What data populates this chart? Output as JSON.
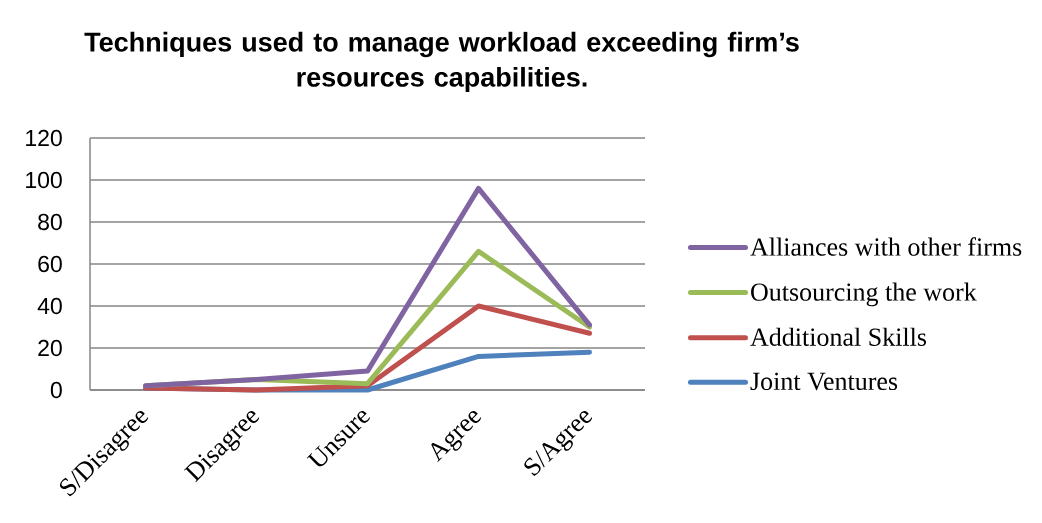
{
  "chart_data": {
    "type": "line",
    "title": "Techniques used to manage workload exceeding firm’s resources capabilities.",
    "categories": [
      "S/Disagree",
      "Disagree",
      "Unsure",
      "Agree",
      "S/Agree"
    ],
    "series": [
      {
        "name": "Alliances with other firms",
        "color": "#8064a2",
        "values": [
          2,
          5,
          9,
          96,
          31
        ]
      },
      {
        "name": "Outsourcing the work",
        "color": "#9bbb59",
        "values": [
          2,
          5,
          3,
          66,
          30
        ]
      },
      {
        "name": "Additional Skills",
        "color": "#c0504d",
        "values": [
          1,
          0,
          2,
          40,
          27
        ]
      },
      {
        "name": "Joint Ventures",
        "color": "#4f81bd",
        "values": [
          1,
          0,
          0,
          16,
          18
        ]
      }
    ],
    "ylim": [
      0,
      120
    ],
    "yticks": [
      0,
      20,
      40,
      60,
      80,
      100,
      120
    ],
    "grid": "y",
    "legend": "right",
    "marker": "none",
    "line_style": "solid"
  }
}
